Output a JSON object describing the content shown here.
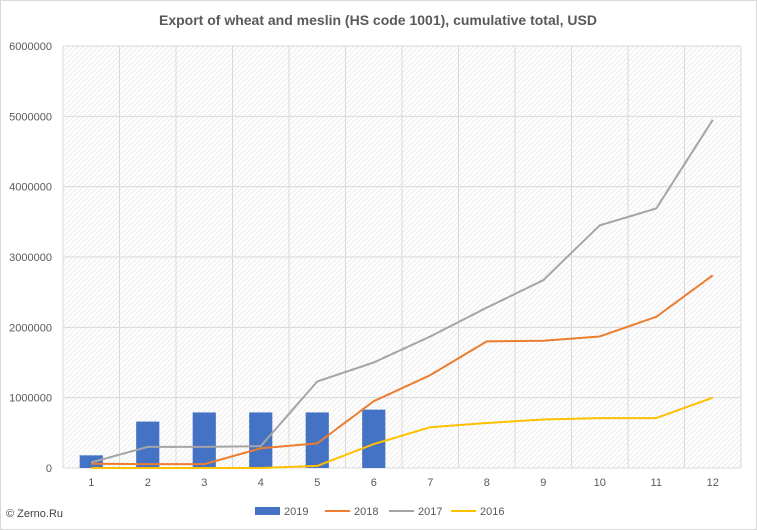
{
  "chart_data": {
    "type": "bar",
    "title": "Export of wheat and meslin (HS code 1001), cumulative total, USD",
    "xlabel": "",
    "ylabel": "",
    "categories": [
      "1",
      "2",
      "3",
      "4",
      "5",
      "6",
      "7",
      "8",
      "9",
      "10",
      "11",
      "12"
    ],
    "ylim": [
      0,
      6000000
    ],
    "yticks": [
      "0",
      "1000000",
      "2000000",
      "3000000",
      "4000000",
      "5000000",
      "6000000"
    ],
    "grid": "hatched plot area with vertical and horizontal gridlines",
    "legend_position": "bottom",
    "series": [
      {
        "name": "2019",
        "kind": "bar",
        "color": "#4472C4",
        "values": [
          180000,
          660000,
          790000,
          790000,
          790000,
          830000,
          null,
          null,
          null,
          null,
          null,
          null
        ]
      },
      {
        "name": "2018",
        "kind": "line",
        "color": "#ED7D31",
        "values": [
          60000,
          55000,
          55000,
          280000,
          350000,
          950000,
          1320000,
          1800000,
          1810000,
          1870000,
          2150000,
          2740000
        ]
      },
      {
        "name": "2017",
        "kind": "line",
        "color": "#A5A5A5",
        "values": [
          80000,
          300000,
          300000,
          310000,
          1230000,
          1500000,
          1870000,
          2280000,
          2670000,
          3450000,
          3690000,
          4950000
        ]
      },
      {
        "name": "2016",
        "kind": "line",
        "color": "#FFC000",
        "values": [
          0,
          0,
          0,
          0,
          30000,
          340000,
          580000,
          640000,
          690000,
          710000,
          710000,
          1000000
        ]
      }
    ]
  },
  "credit": "© Zerno.Ru"
}
